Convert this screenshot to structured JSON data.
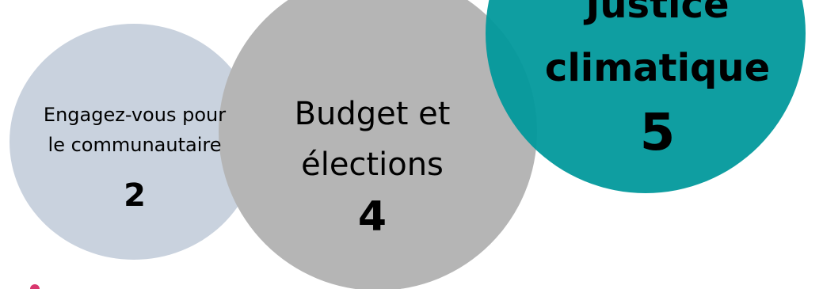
{
  "colors": {
    "engage": "#c9d2de",
    "budget": "#b5b5b5",
    "justice": "#00989b",
    "corner_mark": "#d9376e"
  },
  "bubbles": [
    {
      "label": "Engagez-vous pour le communautaire",
      "count": 2
    },
    {
      "label": "Budget et élections",
      "count": 4
    },
    {
      "label": "Justice climatique",
      "count": 5
    }
  ]
}
